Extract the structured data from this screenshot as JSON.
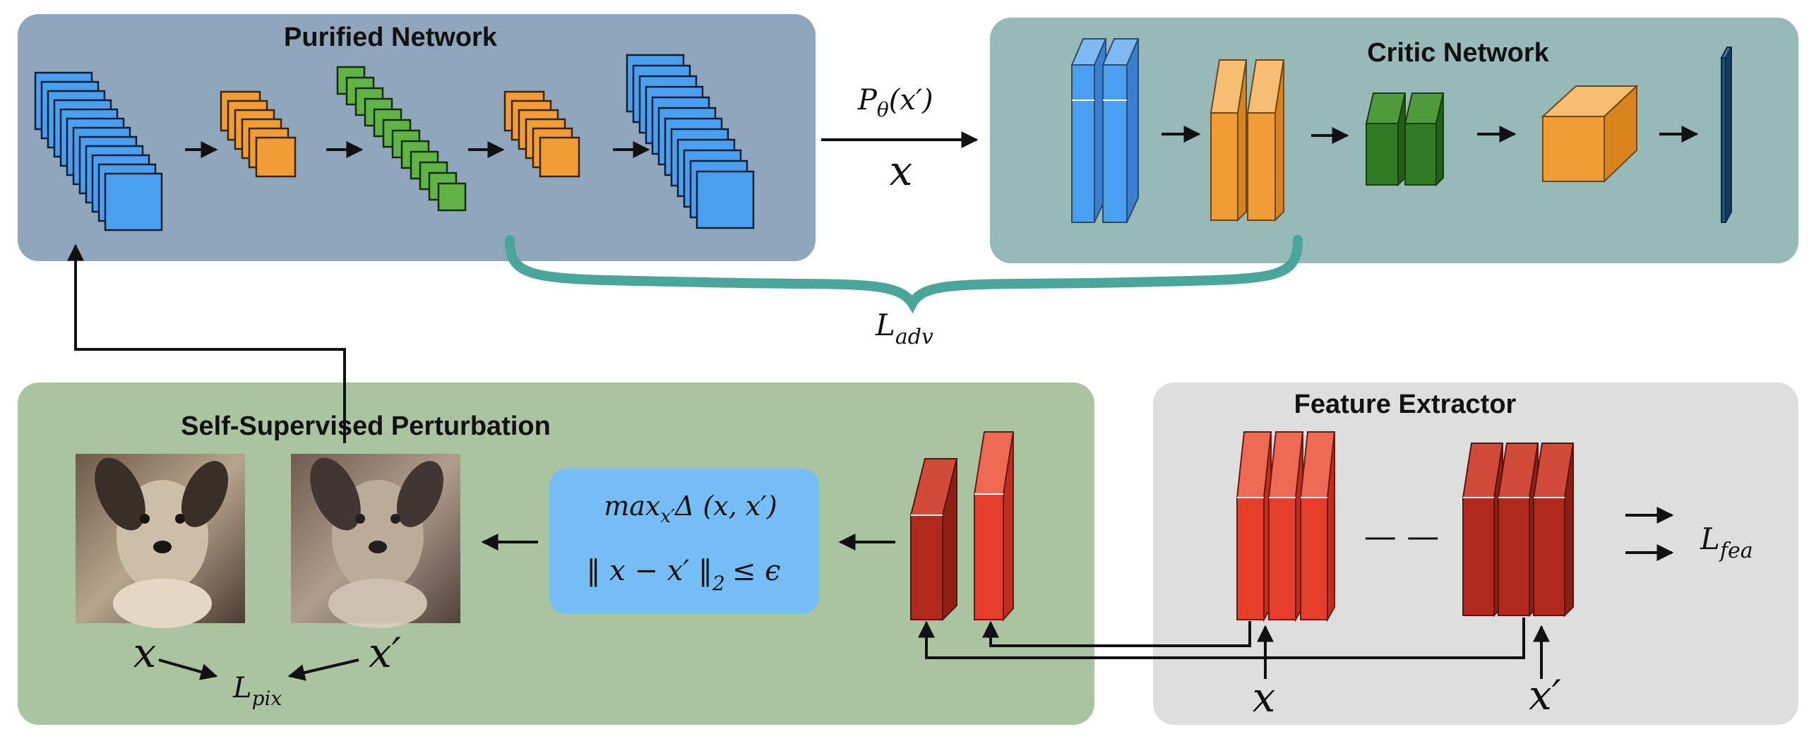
{
  "panels": {
    "purified": {
      "title": "Purified Network",
      "color": "#8fa6bc"
    },
    "critic": {
      "title": "Critic Network",
      "color": "#97bab8"
    },
    "perturbation": {
      "title": "Self-Supervised Perturbation",
      "color": "#a9c49f"
    },
    "feature": {
      "title": "Feature Extractor",
      "color": "#dedede"
    }
  },
  "labels": {
    "p_theta": {
      "base": "P",
      "sub": "θ",
      "arg": "(x′)"
    },
    "x_top": "x",
    "l_adv": {
      "base": "L",
      "sub": "adv"
    },
    "l_fea": {
      "base": "L",
      "sub": "fea"
    },
    "l_pix": {
      "base": "L",
      "sub": "pix"
    },
    "x_img": "x",
    "xp_img": "x′",
    "x_fe": "x",
    "xp_fe": "x′",
    "dash": "— —"
  },
  "formula": {
    "line1": {
      "pre": "max",
      "sub": "x′",
      "post": "Δ (x, x′)"
    },
    "line2": "‖ x − x′ ‖",
    "line2_sub": "2",
    "line2_post": "≤ ϵ",
    "box_color": "#75bdf5"
  },
  "colors": {
    "blue": "#4b9ff0",
    "orange": "#f09d38",
    "green": "#62b346",
    "dark_green": "#2f7a23",
    "red": "#e53e2a",
    "dark_red": "#b0291c",
    "navy": "#1f4e79",
    "teal": "#4aa59a"
  }
}
